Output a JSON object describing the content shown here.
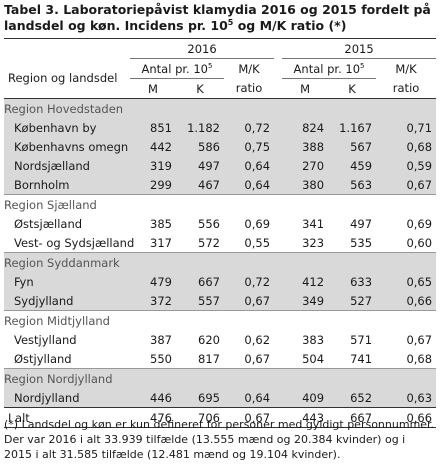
{
  "title": {
    "part1": "Tabel 3. Laboratoriepåvist klamydia 2016 og 2015 fordelt på landsdel og køn. Incidens pr. 10",
    "sup": "5",
    "part2": " og M/K ratio (*)"
  },
  "header": {
    "region_label": "Region og landsdel",
    "year1": "2016",
    "year2": "2015",
    "antal_label": "Antal pr. 10",
    "antal_sup": "5",
    "mk_line1": "M/K",
    "mk_line2": "ratio",
    "m": "M",
    "k": "K"
  },
  "regions": [
    {
      "name": "Region Hovedstaden",
      "rows": [
        {
          "name": "København by",
          "m16": "851",
          "k16": "1.182",
          "r16": "0,72",
          "m15": "824",
          "k15": "1.167",
          "r15": "0,71"
        },
        {
          "name": "Københavns omegn",
          "m16": "442",
          "k16": "586",
          "r16": "0,75",
          "m15": "388",
          "k15": "567",
          "r15": "0,68"
        },
        {
          "name": "Nordsjælland",
          "m16": "319",
          "k16": "497",
          "r16": "0,64",
          "m15": "270",
          "k15": "459",
          "r15": "0,59"
        },
        {
          "name": "Bornholm",
          "m16": "299",
          "k16": "467",
          "r16": "0,64",
          "m15": "380",
          "k15": "563",
          "r15": "0,67"
        }
      ]
    },
    {
      "name": "Region Sjælland",
      "rows": [
        {
          "name": "Østsjælland",
          "m16": "385",
          "k16": "556",
          "r16": "0,69",
          "m15": "341",
          "k15": "497",
          "r15": "0,69"
        },
        {
          "name": "Vest- og Sydsjælland",
          "m16": "317",
          "k16": "572",
          "r16": "0,55",
          "m15": "323",
          "k15": "535",
          "r15": "0,60"
        }
      ]
    },
    {
      "name": "Region Syddanmark",
      "rows": [
        {
          "name": "Fyn",
          "m16": "479",
          "k16": "667",
          "r16": "0,72",
          "m15": "412",
          "k15": "633",
          "r15": "0,65"
        },
        {
          "name": "Sydjylland",
          "m16": "372",
          "k16": "557",
          "r16": "0,67",
          "m15": "349",
          "k15": "527",
          "r15": "0,66"
        }
      ]
    },
    {
      "name": "Region Midtjylland",
      "rows": [
        {
          "name": "Vestjylland",
          "m16": "387",
          "k16": "620",
          "r16": "0,62",
          "m15": "383",
          "k15": "571",
          "r15": "0,67"
        },
        {
          "name": "Østjylland",
          "m16": "550",
          "k16": "817",
          "r16": "0,67",
          "m15": "504",
          "k15": "741",
          "r15": "0,68"
        }
      ]
    },
    {
      "name": "Region Nordjylland",
      "rows": [
        {
          "name": "Nordjylland",
          "m16": "446",
          "k16": "695",
          "r16": "0,64",
          "m15": "409",
          "k15": "652",
          "r15": "0,63"
        }
      ]
    }
  ],
  "total": {
    "name": "I alt",
    "m16": "476",
    "k16": "706",
    "r16": "0,67",
    "m15": "443",
    "k15": "667",
    "r15": "0,66"
  },
  "footnote": "(*) Landsdel og køn er kun defineret for personer med gyldigt personnummer. Der var 2016 i alt 33.939 tilfælde (13.555 mænd og 20.384 kvinder) og i 2015 i alt 31.585 tilfælde (12.481 mænd og 19.104 kvinder).",
  "colors": {
    "band": "#d9d9d9",
    "region_text": "#555555"
  }
}
